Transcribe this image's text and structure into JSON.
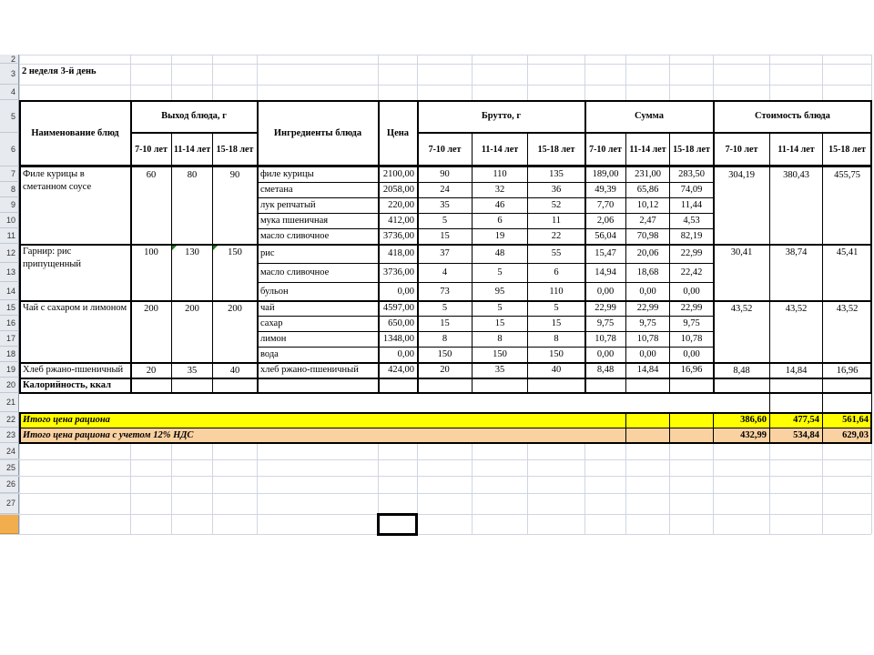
{
  "sheet": {
    "week_label": "2 неделя 3-й день",
    "row_numbers": [
      "2",
      "3",
      "4",
      "5",
      "6",
      "7",
      "8",
      "9",
      "10",
      "11",
      "12",
      "13",
      "14",
      "15",
      "16",
      "17",
      "18",
      "19",
      "20",
      "21",
      "22",
      "23",
      "24",
      "25",
      "26",
      "27",
      ""
    ],
    "header": {
      "name": "Наименование блюд",
      "output": "Выход блюда, г",
      "ages": [
        "7-10 лет",
        "11-14 лет",
        "15-18 лет"
      ],
      "ingredients": "Ингредиенты блюда",
      "price": "Цена",
      "brutto": "Брутто, г",
      "sum": "Сумма",
      "cost": "Стоимость блюда"
    },
    "dishes": [
      {
        "name": "Филе курицы в сметанном соусе",
        "out": [
          "60",
          "80",
          "90"
        ],
        "cost": [
          "304,19",
          "380,43",
          "455,75"
        ],
        "ingredients": [
          {
            "name": "филе курицы",
            "price": "2100,00",
            "brutto": [
              "90",
              "110",
              "135"
            ],
            "sum": [
              "189,00",
              "231,00",
              "283,50"
            ]
          },
          {
            "name": "сметана",
            "price": "2058,00",
            "brutto": [
              "24",
              "32",
              "36"
            ],
            "sum": [
              "49,39",
              "65,86",
              "74,09"
            ]
          },
          {
            "name": "лук репчатый",
            "price": "220,00",
            "brutto": [
              "35",
              "46",
              "52"
            ],
            "sum": [
              "7,70",
              "10,12",
              "11,44"
            ]
          },
          {
            "name": "мука пшеничная",
            "price": "412,00",
            "brutto": [
              "5",
              "6",
              "11"
            ],
            "sum": [
              "2,06",
              "2,47",
              "4,53"
            ]
          },
          {
            "name": "масло сливочное",
            "price": "3736,00",
            "brutto": [
              "15",
              "19",
              "22"
            ],
            "sum": [
              "56,04",
              "70,98",
              "82,19"
            ]
          }
        ]
      },
      {
        "name": "Гарнир: рис припущенный",
        "out": [
          "100",
          "130",
          "150"
        ],
        "out_markers": [
          1,
          2
        ],
        "cost": [
          "30,41",
          "38,74",
          "45,41"
        ],
        "ingredients": [
          {
            "name": "рис",
            "price": "418,00",
            "brutto": [
              "37",
              "48",
              "55"
            ],
            "sum": [
              "15,47",
              "20,06",
              "22,99"
            ]
          },
          {
            "name": "масло сливочное",
            "price": "3736,00",
            "brutto": [
              "4",
              "5",
              "6"
            ],
            "sum": [
              "14,94",
              "18,68",
              "22,42"
            ]
          },
          {
            "name": "бульон",
            "price": "0,00",
            "brutto": [
              "73",
              "95",
              "110"
            ],
            "sum": [
              "0,00",
              "0,00",
              "0,00"
            ]
          }
        ]
      },
      {
        "name": "Чай с сахаром и лимоном",
        "out": [
          "200",
          "200",
          "200"
        ],
        "cost": [
          "43,52",
          "43,52",
          "43,52"
        ],
        "ingredients": [
          {
            "name": "чай",
            "price": "4597,00",
            "brutto": [
              "5",
              "5",
              "5"
            ],
            "sum": [
              "22,99",
              "22,99",
              "22,99"
            ]
          },
          {
            "name": "сахар",
            "price": "650,00",
            "brutto": [
              "15",
              "15",
              "15"
            ],
            "sum": [
              "9,75",
              "9,75",
              "9,75"
            ]
          },
          {
            "name": "лимон",
            "price": "1348,00",
            "brutto": [
              "8",
              "8",
              "8"
            ],
            "sum": [
              "10,78",
              "10,78",
              "10,78"
            ]
          },
          {
            "name": "вода",
            "price": "0,00",
            "brutto": [
              "150",
              "150",
              "150"
            ],
            "sum": [
              "0,00",
              "0,00",
              "0,00"
            ]
          }
        ]
      },
      {
        "name": "Хлеб ржано-пшеничный",
        "out": [
          "20",
          "35",
          "40"
        ],
        "cost": [
          "8,48",
          "14,84",
          "16,96"
        ],
        "ingredients": [
          {
            "name": "хлеб ржано-пшеничный",
            "price": "424,00",
            "brutto": [
              "20",
              "35",
              "40"
            ],
            "sum": [
              "8,48",
              "14,84",
              "16,96"
            ]
          }
        ]
      }
    ],
    "calories_label": "Калорийность, ккал",
    "totals": [
      {
        "label": "Итого цена рациона",
        "color": "#FFFF00",
        "values": [
          "386,60",
          "477,54",
          "561,64"
        ]
      },
      {
        "label": "Итого цена рациона с учетом 12% НДС",
        "color": "#FAD2A2",
        "values": [
          "432,99",
          "534,84",
          "629,03"
        ]
      }
    ]
  }
}
